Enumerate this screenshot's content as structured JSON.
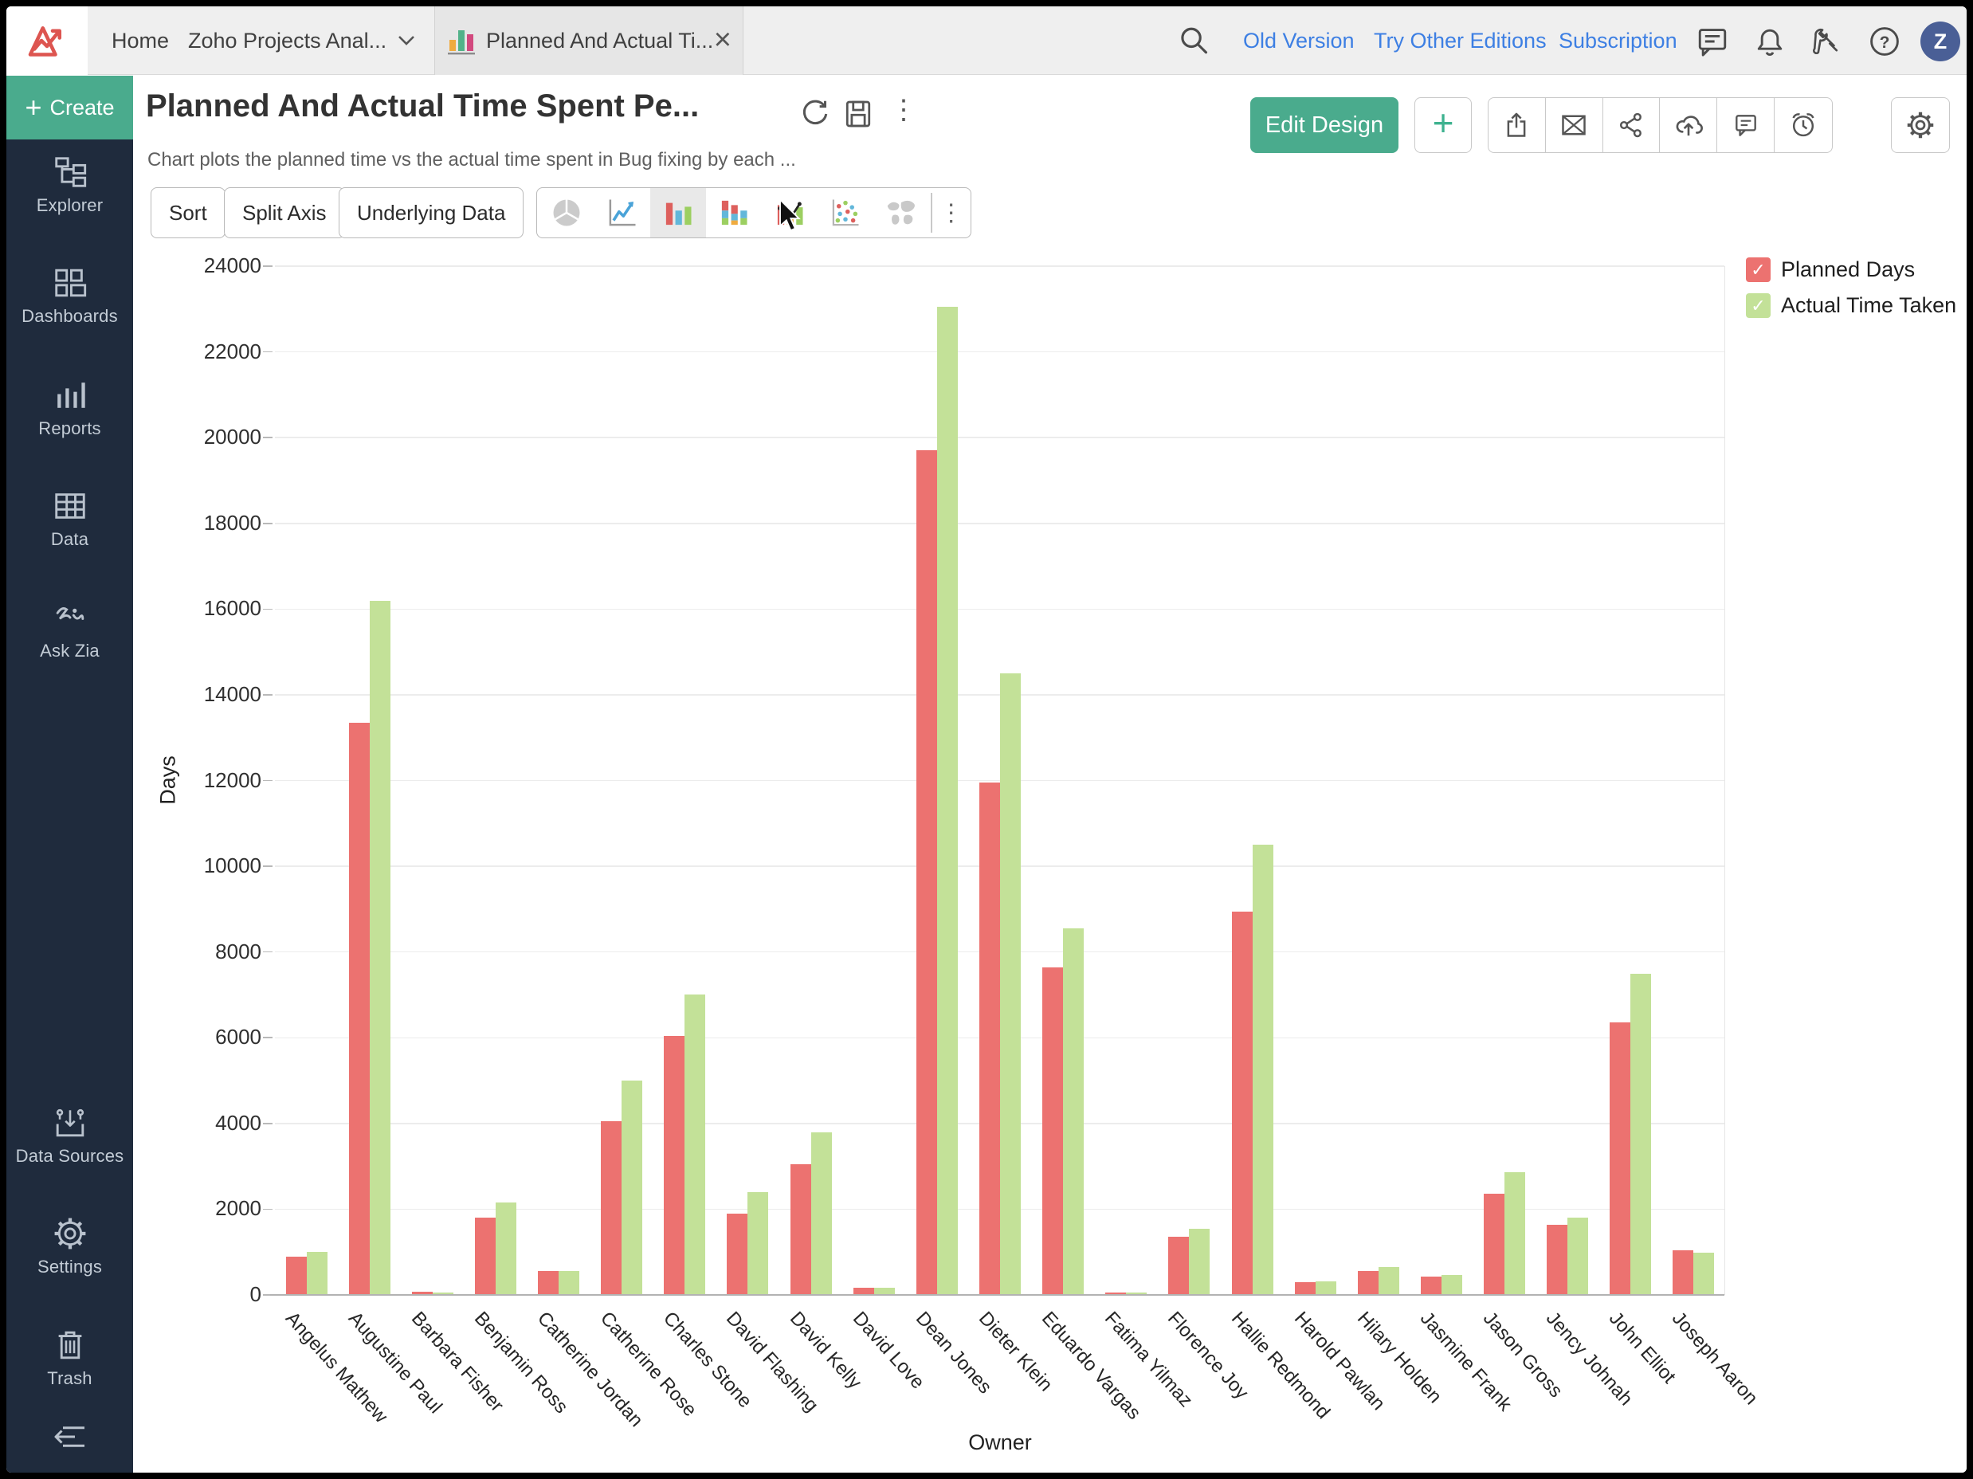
{
  "topbar": {
    "home": "Home",
    "workspace_tab": "Zoho Projects Anal...",
    "active_tab": "Planned And Actual Ti...",
    "links": [
      "Old Version",
      "Try Other Editions",
      "Subscription"
    ],
    "avatar": "Z"
  },
  "sidebar": {
    "create_label": "Create",
    "items": [
      {
        "label": "Explorer"
      },
      {
        "label": "Dashboards"
      },
      {
        "label": "Reports"
      },
      {
        "label": "Data"
      },
      {
        "label": "Ask Zia"
      }
    ],
    "bottom_items": [
      {
        "label": "Data Sources"
      },
      {
        "label": "Settings"
      },
      {
        "label": "Trash"
      }
    ]
  },
  "report": {
    "title": "Planned And Actual Time Spent Pe...",
    "subtitle": "Chart plots the planned time vs the actual time spent in Bug fixing by each ...",
    "edit_design_label": "Edit Design"
  },
  "toolbar": {
    "sort": "Sort",
    "split_axis": "Split Axis",
    "underlying_data": "Underlying Data",
    "chart_types": [
      "pie",
      "line",
      "bar",
      "stacked-bar",
      "combo",
      "scatter",
      "map"
    ],
    "selected_chart_type": "bar"
  },
  "icons": {
    "close": "×",
    "plus": "+",
    "kebab": "⋮",
    "check": "✓"
  },
  "colors": {
    "accent_teal": "#4aab8d",
    "sidebar_bg": "#1f2b3d",
    "link_blue": "#3d7fe3",
    "bar_red": "#ec7270",
    "bar_green": "#c3e198"
  },
  "chart_data": {
    "type": "bar",
    "title": "",
    "xlabel": "Owner",
    "ylabel": "Days",
    "ylim": [
      0,
      24000
    ],
    "yticks": [
      0,
      2000,
      4000,
      6000,
      8000,
      10000,
      12000,
      14000,
      16000,
      18000,
      20000,
      22000,
      24000
    ],
    "grid": true,
    "legend_position": "top-right",
    "categories": [
      "Angelus Mathew",
      "Augustine Paul",
      "Barbara Fisher",
      "Benjamin Ross",
      "Catherine Jordan",
      "Catherine Rose",
      "Charles Stone",
      "David Flashing",
      "David Kelly",
      "David Love",
      "Dean Jones",
      "Dieter Klein",
      "Eduardo Vargas",
      "Fatima Yilmaz",
      "Florence Joy",
      "Hallie Redmond",
      "Harold Pawlan",
      "Hilary Holden",
      "Jasmine Frank",
      "Jason Gross",
      "Jency Johnah",
      "John Elliot",
      "Joseph Aaron"
    ],
    "series": [
      {
        "name": "Planned Days",
        "color": "#ec7270",
        "values": [
          900,
          13350,
          80,
          1800,
          560,
          4050,
          6050,
          1900,
          3050,
          170,
          19700,
          11950,
          7650,
          60,
          1350,
          8950,
          300,
          560,
          420,
          2370,
          1640,
          6350,
          1040
        ]
      },
      {
        "name": "Actual Time Taken",
        "color": "#c3e198",
        "values": [
          1000,
          16200,
          60,
          2150,
          560,
          5000,
          7000,
          2400,
          3800,
          170,
          23050,
          14500,
          8550,
          60,
          1550,
          10500,
          320,
          650,
          460,
          2870,
          1810,
          7500,
          980
        ]
      }
    ]
  }
}
